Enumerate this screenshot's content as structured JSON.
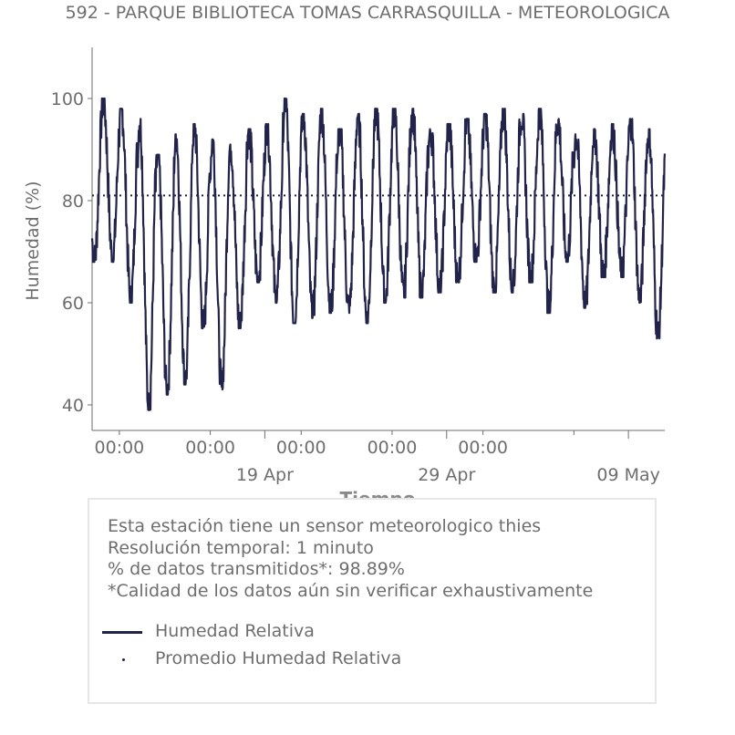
{
  "title": "592 - PARQUE BIBLIOTECA TOMAS CARRASQUILLA - METEOROLOGICA",
  "info": {
    "line1": "Esta estación tiene un sensor meteorologico thies",
    "line2": "Resolución temporal: 1 minuto",
    "line3": "% de datos transmitidos*: 98.89%",
    "line4": "*Calidad de los datos aún sin verificar exhaustivamente"
  },
  "legend": {
    "series_label": "Humedad Relativa",
    "mean_label": "Promedio Humedad Relativa"
  },
  "colors": {
    "series": "#22234a",
    "text": "#6e6e6e",
    "axis": "#6e6e6e",
    "box_border": "#e6e6e6"
  },
  "chart_data": {
    "type": "line",
    "title": "592 - PARQUE BIBLIOTECA TOMAS CARRASQUILLA - METEOROLOGICA",
    "xlabel": "Tiempo",
    "ylabel": "Humedad (%)",
    "y_ticks": [
      40,
      60,
      80,
      100
    ],
    "ylim": [
      35,
      110
    ],
    "x_start": "2025-04-09T12:00",
    "x_end": "2025-05-11T00:00",
    "x_tick_labels": [
      "00:00",
      "00:00",
      "00:00",
      "00:00",
      "00:00"
    ],
    "x_major_labels": [
      "19 Apr",
      "29 Apr",
      "09 May"
    ],
    "grid": false,
    "mean_value": 81,
    "series": [
      {
        "name": "Humedad Relativa",
        "daily_max": [
          100,
          98,
          96,
          89,
          93,
          95,
          92,
          91,
          94,
          95,
          100,
          97,
          98,
          94,
          97,
          98,
          98,
          98,
          94,
          95,
          96,
          97,
          98,
          97,
          98,
          96,
          93,
          94,
          95,
          96,
          94,
          93
        ],
        "daily_min": [
          68,
          60,
          39,
          42,
          44,
          55,
          43,
          55,
          64,
          60,
          56,
          57,
          58,
          58,
          56,
          60,
          61,
          61,
          62,
          64,
          68,
          62,
          62,
          64,
          58,
          68,
          59,
          65,
          65,
          60,
          53,
          47
        ]
      }
    ]
  }
}
